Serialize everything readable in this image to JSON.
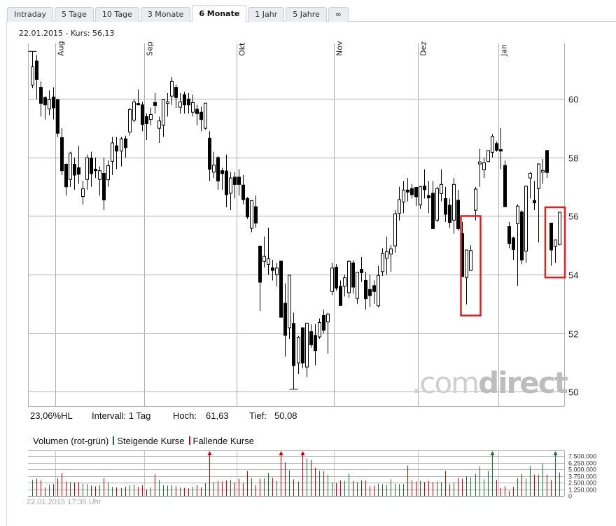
{
  "tabs": [
    {
      "label": "Intraday"
    },
    {
      "label": "5 Tage"
    },
    {
      "label": "10 Tage"
    },
    {
      "label": "3 Monate"
    },
    {
      "label": "6 Monate",
      "active": true
    },
    {
      "label": "1 Jahr"
    },
    {
      "label": "5 Jahre"
    },
    {
      "label": "∞"
    }
  ],
  "header": {
    "text": "22.01.2015  -  Kurs: 56,13"
  },
  "info": {
    "hl": "23,06%HL",
    "interval": "Intervall: 1 Tag",
    "high_label": "Hoch:",
    "high_value": "61,63",
    "low_label": "Tief:",
    "low_value": "50,08"
  },
  "volume_legend": {
    "title": "Volumen (rot-grün)",
    "up": "Steigende Kurse",
    "down": "Fallende Kurse"
  },
  "footer": {
    "timestamp": "22.01.2015 17:35 Uhr"
  },
  "watermark": {
    "text_a": ".com",
    "text_b": "direct"
  },
  "colors": {
    "up": "#1b6e3c",
    "down": "#cc0000",
    "annotation": "#e02020",
    "grid": "#b0b0b0"
  },
  "chart_data": {
    "type": "candlestick",
    "ylim": [
      49.5,
      61.9
    ],
    "y_ticks": [
      {
        "v": 60,
        "label": "60"
      },
      {
        "v": 58,
        "label": "58"
      },
      {
        "v": 56,
        "label": "56"
      },
      {
        "v": 54,
        "label": "54"
      },
      {
        "v": 52,
        "label": "52"
      },
      {
        "v": 50,
        "label": "50"
      }
    ],
    "x_ticks": [
      {
        "date": "2014-08-01",
        "label": "Aug"
      },
      {
        "date": "2014-09-01",
        "label": "Sep"
      },
      {
        "date": "2014-10-01",
        "label": "Okt"
      },
      {
        "date": "2014-11-03",
        "label": "Nov"
      },
      {
        "date": "2014-12-01",
        "label": "Dez"
      },
      {
        "date": "2015-01-02",
        "label": "Jan"
      }
    ],
    "grid": true,
    "high": 61.63,
    "low": 50.08,
    "annotations": [
      {
        "type": "rectangle",
        "from": "2014-12-16",
        "to": "2014-12-18",
        "ylow": 52.6,
        "yhigh": 56.0
      },
      {
        "type": "rectangle",
        "from": "2015-01-20",
        "to": "2015-01-22",
        "ylow": 53.9,
        "yhigh": 56.3
      }
    ],
    "volume": {
      "ylim": [
        0,
        7500000
      ],
      "ticks": [
        {
          "v": 7500000,
          "label": "7.500.000"
        },
        {
          "v": 6250000,
          "label": "6.250.000"
        },
        {
          "v": 5000000,
          "label": "5.000.000"
        },
        {
          "v": 3750000,
          "label": "3.750.000"
        },
        {
          "v": 2500000,
          "label": "2.500.000"
        },
        {
          "v": 1250000,
          "label": "1.250.000"
        },
        {
          "v": 0,
          "label": "0"
        }
      ]
    },
    "columns": [
      "date",
      "open",
      "high",
      "low",
      "close",
      "volume"
    ],
    "candles": [
      [
        "2014-07-24",
        60.48,
        61.63,
        60.37,
        61.1,
        3000000
      ],
      [
        "2014-07-25",
        61.3,
        61.5,
        60.0,
        60.67,
        3200000
      ],
      [
        "2014-07-28",
        60.4,
        60.6,
        59.4,
        59.85,
        2900000
      ],
      [
        "2014-07-29",
        60.05,
        60.1,
        59.3,
        59.8,
        1600000
      ],
      [
        "2014-07-30",
        59.66,
        60.3,
        59.45,
        59.98,
        2100000
      ],
      [
        "2014-07-31",
        60.07,
        60.4,
        59.3,
        59.7,
        2200000
      ],
      [
        "2014-08-01",
        59.98,
        60.0,
        58.7,
        58.83,
        3300000
      ],
      [
        "2014-08-04",
        58.68,
        59.0,
        57.4,
        57.55,
        4300000
      ],
      [
        "2014-08-05",
        57.77,
        57.8,
        56.7,
        57.0,
        2700000
      ],
      [
        "2014-08-06",
        57.25,
        58.2,
        57.0,
        58.15,
        2600000
      ],
      [
        "2014-08-07",
        57.77,
        58.0,
        56.9,
        57.4,
        2500000
      ],
      [
        "2014-08-08",
        57.65,
        58.4,
        57.1,
        57.43,
        2600000
      ],
      [
        "2014-08-11",
        56.67,
        57.2,
        56.4,
        56.93,
        2300000
      ],
      [
        "2014-08-12",
        57.25,
        58.1,
        56.9,
        57.99,
        2200000
      ],
      [
        "2014-08-13",
        57.98,
        58.2,
        57.0,
        57.45,
        1900000
      ],
      [
        "2014-08-14",
        57.6,
        58.0,
        57.3,
        57.55,
        1800000
      ],
      [
        "2014-08-15",
        57.25,
        57.7,
        56.7,
        57.55,
        2000000
      ],
      [
        "2014-08-18",
        57.46,
        58.0,
        56.2,
        56.55,
        3300000
      ],
      [
        "2014-08-19",
        57.24,
        57.9,
        57.0,
        57.72,
        2600000
      ],
      [
        "2014-08-20",
        57.87,
        58.7,
        57.4,
        58.5,
        1700000
      ],
      [
        "2014-08-21",
        58.4,
        58.7,
        57.6,
        58.22,
        1600000
      ],
      [
        "2014-08-22",
        58.22,
        58.7,
        57.7,
        58.64,
        1500000
      ],
      [
        "2014-08-25",
        58.64,
        58.75,
        58.0,
        58.34,
        1700000
      ],
      [
        "2014-08-26",
        58.87,
        59.7,
        58.75,
        59.64,
        2000000
      ],
      [
        "2014-08-27",
        59.28,
        60.0,
        59.2,
        59.9,
        2100000
      ],
      [
        "2014-08-28",
        59.85,
        60.33,
        59.8,
        59.8,
        1700000
      ],
      [
        "2014-08-29",
        59.8,
        59.9,
        58.9,
        59.13,
        2000000
      ],
      [
        "2014-09-01",
        59.4,
        59.5,
        58.6,
        59.16,
        1200000
      ],
      [
        "2014-09-02",
        59.3,
        59.7,
        59.1,
        59.47,
        1600000
      ],
      [
        "2014-09-03",
        59.88,
        60.2,
        59.5,
        59.78,
        4100000
      ],
      [
        "2014-09-04",
        59.0,
        59.4,
        58.5,
        59.25,
        3000000
      ],
      [
        "2014-09-05",
        59.1,
        60.0,
        58.7,
        59.98,
        2000000
      ],
      [
        "2014-09-08",
        59.85,
        60.2,
        59.4,
        59.9,
        1900000
      ],
      [
        "2014-09-09",
        60.1,
        60.75,
        59.8,
        60.6,
        2000000
      ],
      [
        "2014-09-10",
        60.4,
        60.5,
        59.7,
        60.05,
        1800000
      ],
      [
        "2014-09-11",
        59.72,
        60.2,
        59.5,
        59.9,
        1600000
      ],
      [
        "2014-09-12",
        60.15,
        60.25,
        59.5,
        59.8,
        1500000
      ],
      [
        "2014-09-15",
        60.0,
        60.2,
        59.5,
        59.8,
        1400000
      ],
      [
        "2014-09-16",
        59.55,
        60.15,
        59.4,
        59.88,
        1700000
      ],
      [
        "2014-09-17",
        59.65,
        59.8,
        59.1,
        59.5,
        2000000
      ],
      [
        "2014-09-18",
        59.55,
        59.75,
        58.9,
        59.3,
        1600000
      ],
      [
        "2014-09-19",
        59.0,
        59.86,
        58.95,
        59.86,
        2400000
      ],
      [
        "2014-09-22",
        58.66,
        58.9,
        57.2,
        57.6,
        8900000
      ],
      [
        "2014-09-23",
        57.5,
        58.2,
        57.3,
        57.74,
        2600000
      ],
      [
        "2014-09-24",
        58.0,
        58.05,
        56.9,
        57.2,
        2800000
      ],
      [
        "2014-09-25",
        57.55,
        57.65,
        56.9,
        57.45,
        2700000
      ],
      [
        "2014-09-26",
        57.54,
        58.1,
        56.3,
        56.73,
        2900000
      ],
      [
        "2014-09-29",
        56.78,
        57.5,
        56.2,
        57.3,
        3000000
      ],
      [
        "2014-09-30",
        57.33,
        57.5,
        56.6,
        57.08,
        2500000
      ],
      [
        "2014-10-01",
        57.33,
        57.6,
        56.7,
        57.08,
        3200000
      ],
      [
        "2014-10-02",
        57.06,
        57.4,
        56.4,
        56.56,
        2400000
      ],
      [
        "2014-10-03",
        56.6,
        56.65,
        55.9,
        55.97,
        4700000
      ],
      [
        "2014-10-06",
        55.58,
        56.5,
        55.45,
        56.53,
        3300000
      ],
      [
        "2014-10-07",
        56.32,
        56.7,
        55.6,
        55.76,
        2000000
      ],
      [
        "2014-10-08",
        54.97,
        55.0,
        52.76,
        53.74,
        3200000
      ],
      [
        "2014-10-09",
        54.45,
        55.3,
        54.25,
        54.62,
        3300000
      ],
      [
        "2014-10-10",
        54.35,
        55.6,
        54.0,
        54.54,
        4300000
      ],
      [
        "2014-10-13",
        54.23,
        54.5,
        53.8,
        54.14,
        3400000
      ],
      [
        "2014-10-14",
        54.0,
        54.4,
        53.6,
        54.22,
        2800000
      ],
      [
        "2014-10-15",
        54.46,
        54.46,
        52.54,
        52.54,
        8800000
      ],
      [
        "2014-10-16",
        53.02,
        53.7,
        51.2,
        51.92,
        6300000
      ],
      [
        "2014-10-17",
        52.18,
        54.0,
        51.8,
        53.98,
        4800000
      ],
      [
        "2014-10-20",
        52.33,
        52.7,
        50.08,
        50.89,
        3100000
      ],
      [
        "2014-10-21",
        50.98,
        51.9,
        50.6,
        51.86,
        2700000
      ],
      [
        "2014-10-22",
        52.18,
        52.2,
        50.8,
        50.98,
        8200000
      ],
      [
        "2014-10-23",
        50.84,
        52.34,
        50.5,
        52.34,
        7000000
      ],
      [
        "2014-10-24",
        52.05,
        52.3,
        51.5,
        51.6,
        6700000
      ],
      [
        "2014-10-27",
        51.92,
        52.3,
        50.9,
        51.4,
        5300000
      ],
      [
        "2014-10-28",
        51.87,
        52.5,
        51.8,
        52.36,
        4700000
      ],
      [
        "2014-10-29",
        52.6,
        52.8,
        52.0,
        52.1,
        4600000
      ],
      [
        "2014-10-30",
        52.38,
        52.7,
        51.3,
        52.65,
        4000000
      ],
      [
        "2014-10-31",
        53.42,
        54.4,
        53.3,
        54.22,
        2600000
      ],
      [
        "2014-11-03",
        54.25,
        54.35,
        53.45,
        53.54,
        2400000
      ],
      [
        "2014-11-04",
        53.6,
        53.8,
        52.94,
        52.94,
        2900000
      ],
      [
        "2014-11-05",
        53.6,
        54.0,
        53.25,
        53.89,
        2800000
      ],
      [
        "2014-11-06",
        53.38,
        54.5,
        53.2,
        54.45,
        4200000
      ],
      [
        "2014-11-07",
        54.4,
        54.5,
        53.35,
        53.57,
        2800000
      ],
      [
        "2014-11-10",
        53.18,
        54.08,
        53.0,
        54.08,
        2600000
      ],
      [
        "2014-11-11",
        54.18,
        54.6,
        53.75,
        54.06,
        2900000
      ],
      [
        "2014-11-12",
        53.8,
        54.1,
        52.8,
        53.17,
        2900000
      ],
      [
        "2014-11-13",
        53.49,
        54.0,
        52.9,
        53.28,
        1800000
      ],
      [
        "2014-11-14",
        53.62,
        53.8,
        53.0,
        53.42,
        1900000
      ],
      [
        "2014-11-17",
        52.93,
        54.3,
        52.88,
        53.97,
        2300000
      ],
      [
        "2014-11-18",
        54.1,
        54.9,
        53.95,
        54.73,
        2200000
      ],
      [
        "2014-11-19",
        54.56,
        55.3,
        54.0,
        54.78,
        2100000
      ],
      [
        "2014-11-20",
        54.7,
        55.0,
        54.1,
        54.88,
        3100000
      ],
      [
        "2014-11-21",
        54.98,
        56.2,
        54.75,
        56.08,
        2300000
      ],
      [
        "2014-11-24",
        56.09,
        57.0,
        55.85,
        56.56,
        2200000
      ],
      [
        "2014-11-25",
        56.48,
        57.2,
        56.1,
        56.89,
        2200000
      ],
      [
        "2014-11-26",
        56.89,
        57.3,
        56.5,
        56.82,
        5700000
      ],
      [
        "2014-11-27",
        56.94,
        57.1,
        56.6,
        56.73,
        2900000
      ],
      [
        "2014-11-28",
        56.98,
        57.0,
        56.35,
        56.66,
        2700000
      ],
      [
        "2014-12-01",
        56.38,
        57.03,
        56.25,
        57.0,
        2800000
      ],
      [
        "2014-12-02",
        57.03,
        57.6,
        56.6,
        56.9,
        2600000
      ],
      [
        "2014-12-03",
        56.7,
        57.2,
        56.1,
        56.62,
        2800000
      ],
      [
        "2014-12-04",
        56.78,
        57.2,
        55.57,
        55.57,
        2600000
      ],
      [
        "2014-12-05",
        55.86,
        57.0,
        55.8,
        56.94,
        2700000
      ],
      [
        "2014-12-08",
        56.77,
        57.6,
        56.5,
        57.08,
        2600000
      ],
      [
        "2014-12-09",
        56.6,
        57.0,
        55.8,
        56.06,
        4700000
      ],
      [
        "2014-12-10",
        56.37,
        56.6,
        55.6,
        55.78,
        2200000
      ],
      [
        "2014-12-11",
        55.86,
        57.3,
        55.4,
        57.08,
        2500000
      ],
      [
        "2014-12-12",
        56.54,
        56.9,
        55.5,
        55.57,
        3400000
      ],
      [
        "2014-12-15",
        55.4,
        55.8,
        53.93,
        53.93,
        3200000
      ],
      [
        "2014-12-16",
        53.9,
        54.84,
        52.98,
        54.84,
        3700000
      ],
      [
        "2014-12-17",
        54.14,
        55.0,
        54.14,
        54.82,
        3500000
      ],
      [
        "2014-12-18",
        56.2,
        57.0,
        55.85,
        56.92,
        4100000
      ],
      [
        "2014-12-19",
        57.78,
        58.3,
        57.0,
        57.85,
        5500000
      ],
      [
        "2014-12-22",
        57.58,
        58.0,
        57.3,
        57.82,
        3100000
      ],
      [
        "2014-12-23",
        57.86,
        58.24,
        57.85,
        58.24,
        4700000
      ],
      [
        "2014-12-29",
        58.18,
        58.8,
        58.0,
        58.72,
        8600000
      ],
      [
        "2014-12-30",
        58.48,
        58.55,
        58.2,
        58.25,
        3000000
      ],
      [
        "2015-01-02",
        58.27,
        59.0,
        57.6,
        58.22,
        1500000
      ],
      [
        "2015-01-05",
        57.73,
        57.9,
        56.3,
        56.32,
        1800000
      ],
      [
        "2015-01-06",
        55.64,
        55.8,
        54.9,
        55.06,
        900000
      ],
      [
        "2015-01-07",
        55.25,
        55.3,
        54.5,
        54.85,
        1700000
      ],
      [
        "2015-01-08",
        55.74,
        56.4,
        53.62,
        56.34,
        3300000
      ],
      [
        "2015-01-09",
        56.14,
        56.2,
        54.35,
        54.5,
        4100000
      ],
      [
        "2015-01-12",
        54.8,
        57.05,
        54.4,
        57.02,
        3300000
      ],
      [
        "2015-01-13",
        57.3,
        57.5,
        56.6,
        57.46,
        5600000
      ],
      [
        "2015-01-14",
        56.53,
        57.2,
        56.2,
        56.45,
        4000000
      ],
      [
        "2015-01-15",
        56.94,
        57.8,
        55.1,
        57.78,
        4000000
      ],
      [
        "2015-01-16",
        57.5,
        57.95,
        57.1,
        57.56,
        6100000
      ],
      [
        "2015-01-19",
        58.24,
        58.26,
        57.3,
        57.49,
        4000000
      ],
      [
        "2015-01-20",
        55.76,
        55.76,
        54.3,
        54.84,
        3000000
      ],
      [
        "2015-01-21",
        54.97,
        55.2,
        54.4,
        55.18,
        8800000
      ],
      [
        "2015-01-22",
        55.02,
        56.13,
        55.0,
        56.13,
        4400000
      ]
    ]
  }
}
